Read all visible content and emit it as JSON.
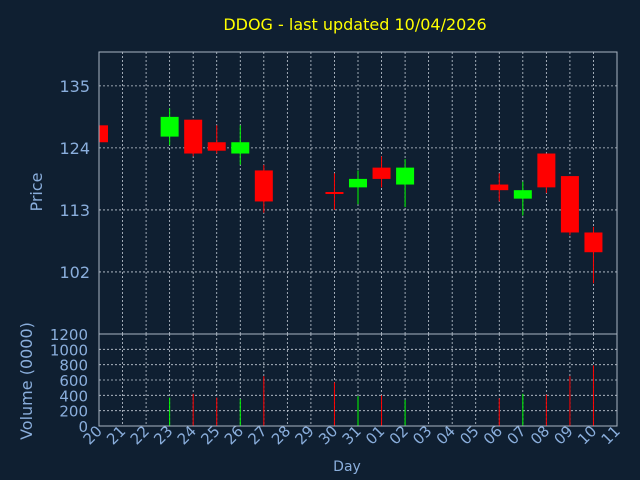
{
  "colors": {
    "background": "#0f1f31",
    "axis": "#aab6c4",
    "grid": "#c4ccd6",
    "up": "#00ff00",
    "down": "#ff0000",
    "neutral": "#ff0000",
    "title": "#ffff00",
    "label": "#8aaedc"
  },
  "chart_data": {
    "type": "candlestick",
    "title": "DDOG - last updated 10/04/2026",
    "ylabel": "Price",
    "volume_ylabel": "Volume (0000)",
    "xlabel": "Day",
    "ylim": [
      91,
      141
    ],
    "yticks": [
      102,
      113,
      124,
      135
    ],
    "volume_ylim": [
      0,
      1200
    ],
    "volume_yticks": [
      0,
      200,
      400,
      600,
      800,
      1000,
      1200
    ],
    "grid": true,
    "categories": [
      "20",
      "21",
      "22",
      "23",
      "24",
      "25",
      "26",
      "27",
      "28",
      "29",
      "30",
      "31",
      "01",
      "02",
      "03",
      "04",
      "05",
      "06",
      "07",
      "08",
      "09",
      "10",
      "11"
    ],
    "candles": [
      {
        "day": "20",
        "open": 128.0,
        "high": 128.0,
        "low": 125.0,
        "close": 125.0,
        "volume": 0
      },
      {
        "day": "23",
        "open": 126.0,
        "high": 131.0,
        "low": 124.5,
        "close": 129.5,
        "volume": 370
      },
      {
        "day": "24",
        "open": 129.0,
        "high": 129.0,
        "low": 122.5,
        "close": 123.0,
        "volume": 420
      },
      {
        "day": "25",
        "open": 125.0,
        "high": 128.0,
        "low": 123.0,
        "close": 123.5,
        "volume": 370
      },
      {
        "day": "26",
        "open": 123.0,
        "high": 128.0,
        "low": 121.0,
        "close": 125.0,
        "volume": 350
      },
      {
        "day": "27",
        "open": 120.0,
        "high": 121.0,
        "low": 112.5,
        "close": 114.5,
        "volume": 650
      },
      {
        "day": "30",
        "open": 116.0,
        "high": 119.5,
        "low": 113.0,
        "close": 116.0,
        "volume": 570
      },
      {
        "day": "31",
        "open": 117.0,
        "high": 120.0,
        "low": 114.0,
        "close": 118.5,
        "volume": 390
      },
      {
        "day": "01",
        "open": 120.5,
        "high": 122.5,
        "low": 117.0,
        "close": 118.5,
        "volume": 400
      },
      {
        "day": "02",
        "open": 117.5,
        "high": 122.0,
        "low": 113.5,
        "close": 120.5,
        "volume": 340
      },
      {
        "day": "06",
        "open": 117.5,
        "high": 119.5,
        "low": 114.5,
        "close": 116.5,
        "volume": 360
      },
      {
        "day": "07",
        "open": 115.0,
        "high": 118.0,
        "low": 112.0,
        "close": 116.5,
        "volume": 420
      },
      {
        "day": "08",
        "open": 123.0,
        "high": 123.0,
        "low": 116.0,
        "close": 117.0,
        "volume": 410
      },
      {
        "day": "09",
        "open": 119.0,
        "high": 119.0,
        "low": 108.5,
        "close": 109.0,
        "volume": 650
      },
      {
        "day": "10",
        "open": 109.0,
        "high": 110.0,
        "low": 100.0,
        "close": 105.5,
        "volume": 790
      }
    ]
  }
}
